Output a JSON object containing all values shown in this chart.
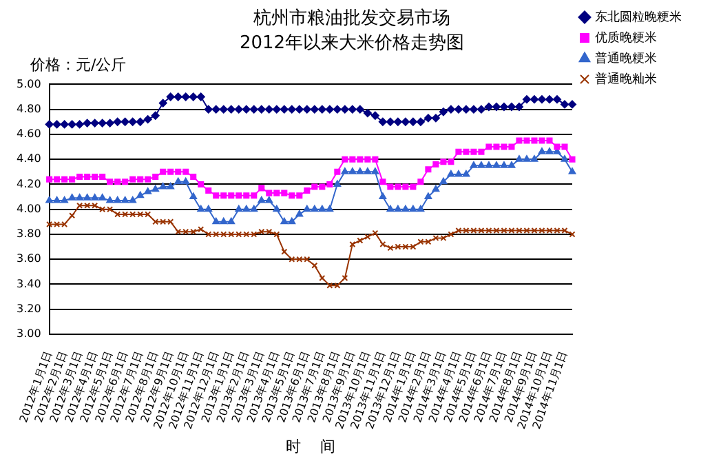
{
  "chart_data": {
    "type": "line",
    "title": "杭州市粮油批发交易市场",
    "subtitle": "2012年以来大米价格走势图",
    "ylabel": "价格：元/公斤",
    "xlabel": "时    间",
    "categories": [
      "2012年1月1日",
      null,
      "2012年2月1日",
      null,
      "2012年3月1日",
      null,
      "2012年4月1日",
      null,
      "2012年5月1日",
      null,
      "2012年6月1日",
      null,
      "2012年7月1日",
      null,
      "2012年8月1日",
      null,
      "2012年9月1日",
      null,
      "2012年10月1日",
      null,
      "2012年11月1日",
      null,
      "2012年12月1日",
      null,
      "2013年1月1日",
      null,
      "2013年2月1日",
      null,
      "2013年3月1日",
      null,
      "2013年4月1日",
      null,
      "2013年5月1日",
      null,
      "2013年6月1日",
      null,
      "2013年7月1日",
      null,
      "2013年8月1日",
      null,
      "2013年9月1日",
      null,
      "2013年10月1日",
      null,
      "2013年11月1日",
      null,
      "2013年12月1日",
      null,
      "2014年1月1日",
      null,
      "2014年2月1日",
      null,
      "2014年3月1日",
      null,
      "2014年4月1日",
      null,
      "2014年5月1日",
      null,
      "2014年6月1日",
      null,
      "2014年7月1日",
      null,
      "2014年8月1日",
      null,
      "2014年9月1日",
      null,
      "2014年10月1日",
      null,
      "2014年11月1日",
      null
    ],
    "series": [
      {
        "name": "东北圆粒晚粳米",
        "color": "#000080",
        "marker": "diamond",
        "values": [
          4.68,
          4.68,
          4.68,
          4.68,
          4.68,
          4.69,
          4.69,
          4.69,
          4.69,
          4.7,
          4.7,
          4.7,
          4.7,
          4.72,
          4.75,
          4.85,
          4.9,
          4.9,
          4.9,
          4.9,
          4.9,
          4.8,
          4.8,
          4.8,
          4.8,
          4.8,
          4.8,
          4.8,
          4.8,
          4.8,
          4.8,
          4.8,
          4.8,
          4.8,
          4.8,
          4.8,
          4.8,
          4.8,
          4.8,
          4.8,
          4.8,
          4.8,
          4.77,
          4.75,
          4.7,
          4.7,
          4.7,
          4.7,
          4.7,
          4.7,
          4.73,
          4.73,
          4.78,
          4.8,
          4.8,
          4.8,
          4.8,
          4.8,
          4.82,
          4.82,
          4.82,
          4.82,
          4.82,
          4.88,
          4.88,
          4.88,
          4.88,
          4.88,
          4.84,
          4.84
        ]
      },
      {
        "name": "优质晚粳米",
        "color": "#ff00ff",
        "marker": "square",
        "values": [
          4.24,
          4.24,
          4.24,
          4.24,
          4.26,
          4.26,
          4.26,
          4.26,
          4.22,
          4.22,
          4.22,
          4.24,
          4.24,
          4.24,
          4.26,
          4.3,
          4.3,
          4.3,
          4.3,
          4.26,
          4.2,
          4.15,
          4.11,
          4.11,
          4.11,
          4.11,
          4.11,
          4.11,
          4.17,
          4.13,
          4.13,
          4.13,
          4.11,
          4.11,
          4.15,
          4.18,
          4.18,
          4.2,
          4.3,
          4.4,
          4.4,
          4.4,
          4.4,
          4.4,
          4.22,
          4.18,
          4.18,
          4.18,
          4.18,
          4.22,
          4.32,
          4.36,
          4.38,
          4.38,
          4.46,
          4.46,
          4.46,
          4.46,
          4.5,
          4.5,
          4.5,
          4.5,
          4.55,
          4.55,
          4.55,
          4.55,
          4.55,
          4.5,
          4.5,
          4.4
        ]
      },
      {
        "name": "普通晚粳米",
        "color": "#3366cc",
        "marker": "triangle",
        "values": [
          4.07,
          4.07,
          4.07,
          4.09,
          4.09,
          4.09,
          4.09,
          4.09,
          4.07,
          4.07,
          4.07,
          4.07,
          4.11,
          4.14,
          4.16,
          4.18,
          4.18,
          4.22,
          4.22,
          4.1,
          4.0,
          4.0,
          3.9,
          3.9,
          3.9,
          4.0,
          4.0,
          4.0,
          4.07,
          4.07,
          4.0,
          3.9,
          3.9,
          3.96,
          4.0,
          4.0,
          4.0,
          4.0,
          4.2,
          4.3,
          4.3,
          4.3,
          4.3,
          4.3,
          4.1,
          4.0,
          4.0,
          4.0,
          4.0,
          4.0,
          4.1,
          4.16,
          4.22,
          4.28,
          4.28,
          4.28,
          4.35,
          4.35,
          4.35,
          4.35,
          4.35,
          4.35,
          4.4,
          4.4,
          4.4,
          4.46,
          4.46,
          4.46,
          4.4,
          4.3
        ]
      },
      {
        "name": "普通晚籼米",
        "color": "#993300",
        "marker": "cross",
        "values": [
          3.88,
          3.88,
          3.88,
          3.95,
          4.03,
          4.03,
          4.03,
          4.0,
          4.0,
          3.96,
          3.96,
          3.96,
          3.96,
          3.96,
          3.9,
          3.9,
          3.9,
          3.82,
          3.82,
          3.82,
          3.84,
          3.8,
          3.8,
          3.8,
          3.8,
          3.8,
          3.8,
          3.8,
          3.82,
          3.82,
          3.8,
          3.66,
          3.6,
          3.6,
          3.6,
          3.55,
          3.45,
          3.39,
          3.39,
          3.45,
          3.72,
          3.75,
          3.78,
          3.81,
          3.72,
          3.69,
          3.7,
          3.7,
          3.7,
          3.74,
          3.74,
          3.77,
          3.77,
          3.8,
          3.83,
          3.83,
          3.83,
          3.83,
          3.83,
          3.83,
          3.83,
          3.83,
          3.83,
          3.83,
          3.83,
          3.83,
          3.83,
          3.83,
          3.83,
          3.8
        ]
      }
    ],
    "ylim": [
      3.0,
      5.0
    ],
    "yticks": [
      {
        "value": 3.0,
        "label": "3.00"
      },
      {
        "value": 3.2,
        "label": "3.20"
      },
      {
        "value": 3.4,
        "label": "3.40"
      },
      {
        "value": 3.6,
        "label": "3.60"
      },
      {
        "value": 3.8,
        "label": "3.80"
      },
      {
        "value": 4.0,
        "label": "4.00"
      },
      {
        "value": 4.2,
        "label": "4.20"
      },
      {
        "value": 4.4,
        "label": "4.40"
      },
      {
        "value": 4.6,
        "label": "4.60"
      },
      {
        "value": 4.8,
        "label": "4.80"
      },
      {
        "value": 5.0,
        "label": "5.00"
      }
    ],
    "grid": "y",
    "legend": "top right",
    "line_style": "solid"
  }
}
